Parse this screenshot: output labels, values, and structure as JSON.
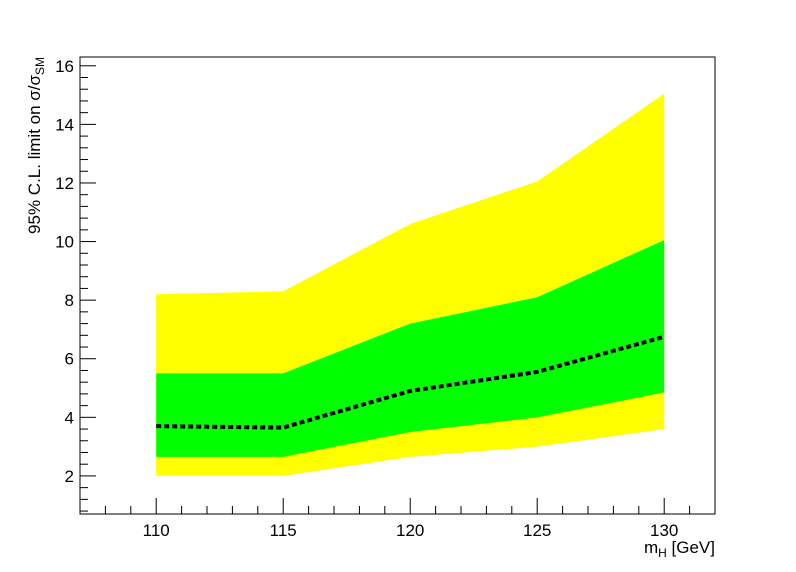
{
  "chart_data": {
    "type": "area",
    "x": [
      110,
      115,
      120,
      125,
      130
    ],
    "xlabel": {
      "main": "m",
      "sub": "H",
      "unit": " [GeV]"
    },
    "ylabel": {
      "main": "95% C.L. limit on σ/σ",
      "sub": "SM"
    },
    "xlim": [
      107,
      132
    ],
    "ylim": [
      0.7,
      16.3
    ],
    "xticks": [
      110,
      115,
      120,
      125,
      130
    ],
    "yticks": [
      2,
      4,
      6,
      8,
      10,
      12,
      14,
      16
    ],
    "grid": false,
    "legend": "none",
    "series": [
      {
        "role": "band-2sigma",
        "color": "#ffff00",
        "lower": [
          2.0,
          2.0,
          2.65,
          3.0,
          3.6
        ],
        "upper": [
          8.2,
          8.3,
          10.6,
          12.05,
          15.05
        ]
      },
      {
        "role": "band-1sigma",
        "color": "#00ff00",
        "lower": [
          2.65,
          2.65,
          3.5,
          4.0,
          4.85
        ],
        "upper": [
          5.5,
          5.5,
          7.2,
          8.1,
          10.05
        ]
      },
      {
        "role": "expected-median",
        "color": "#000000",
        "style": "dashed",
        "values": [
          3.7,
          3.65,
          4.9,
          5.55,
          6.75
        ]
      }
    ]
  }
}
